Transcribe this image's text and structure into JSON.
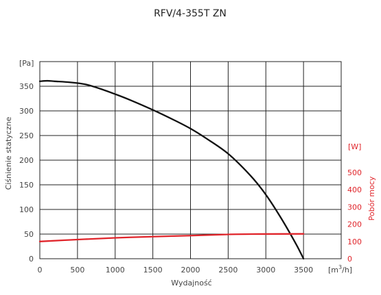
{
  "chart_data": {
    "type": "line",
    "title": "RFV/4-355T ZN",
    "xlabel": "Wydajność",
    "x_unit": {
      "prefix": "[m",
      "sup": "3",
      "suffix": "/h]"
    },
    "ylabel_left": "Ciśnienie statyczne",
    "ylabel_right": "Pobór mocy",
    "y_unit_left": "[Pa]",
    "y_unit_right": "[W]",
    "xlim": [
      0,
      4000
    ],
    "ylim_left": [
      0,
      350
    ],
    "ylim_right": [
      0,
      500
    ],
    "x_ticks": [
      0,
      500,
      1000,
      1500,
      2000,
      2500,
      3000,
      3500
    ],
    "y_ticks_left": [
      0,
      50,
      100,
      150,
      200,
      250,
      300,
      350
    ],
    "y_ticks_right": [
      0,
      100,
      200,
      300,
      400,
      500
    ],
    "grid": true,
    "colors": {
      "pressure": "#111111",
      "power": "#e0242a",
      "grid": "#222222"
    },
    "series": [
      {
        "axis": "left",
        "x": [
          0,
          100,
          200,
          400,
          600,
          800,
          1000,
          1200,
          1500,
          1800,
          2000,
          2200,
          2500,
          2800,
          3000,
          3200,
          3400,
          3500
        ],
        "y": [
          360,
          361,
          360,
          358,
          354,
          345,
          334,
          322,
          302,
          280,
          264,
          245,
          213,
          168,
          130,
          83,
          30,
          0
        ]
      },
      {
        "axis": "right",
        "x": [
          0,
          500,
          1000,
          1500,
          2000,
          2500,
          2900,
          3500
        ],
        "y": [
          100,
          111,
          121,
          128,
          134,
          141,
          143,
          144
        ]
      }
    ]
  }
}
